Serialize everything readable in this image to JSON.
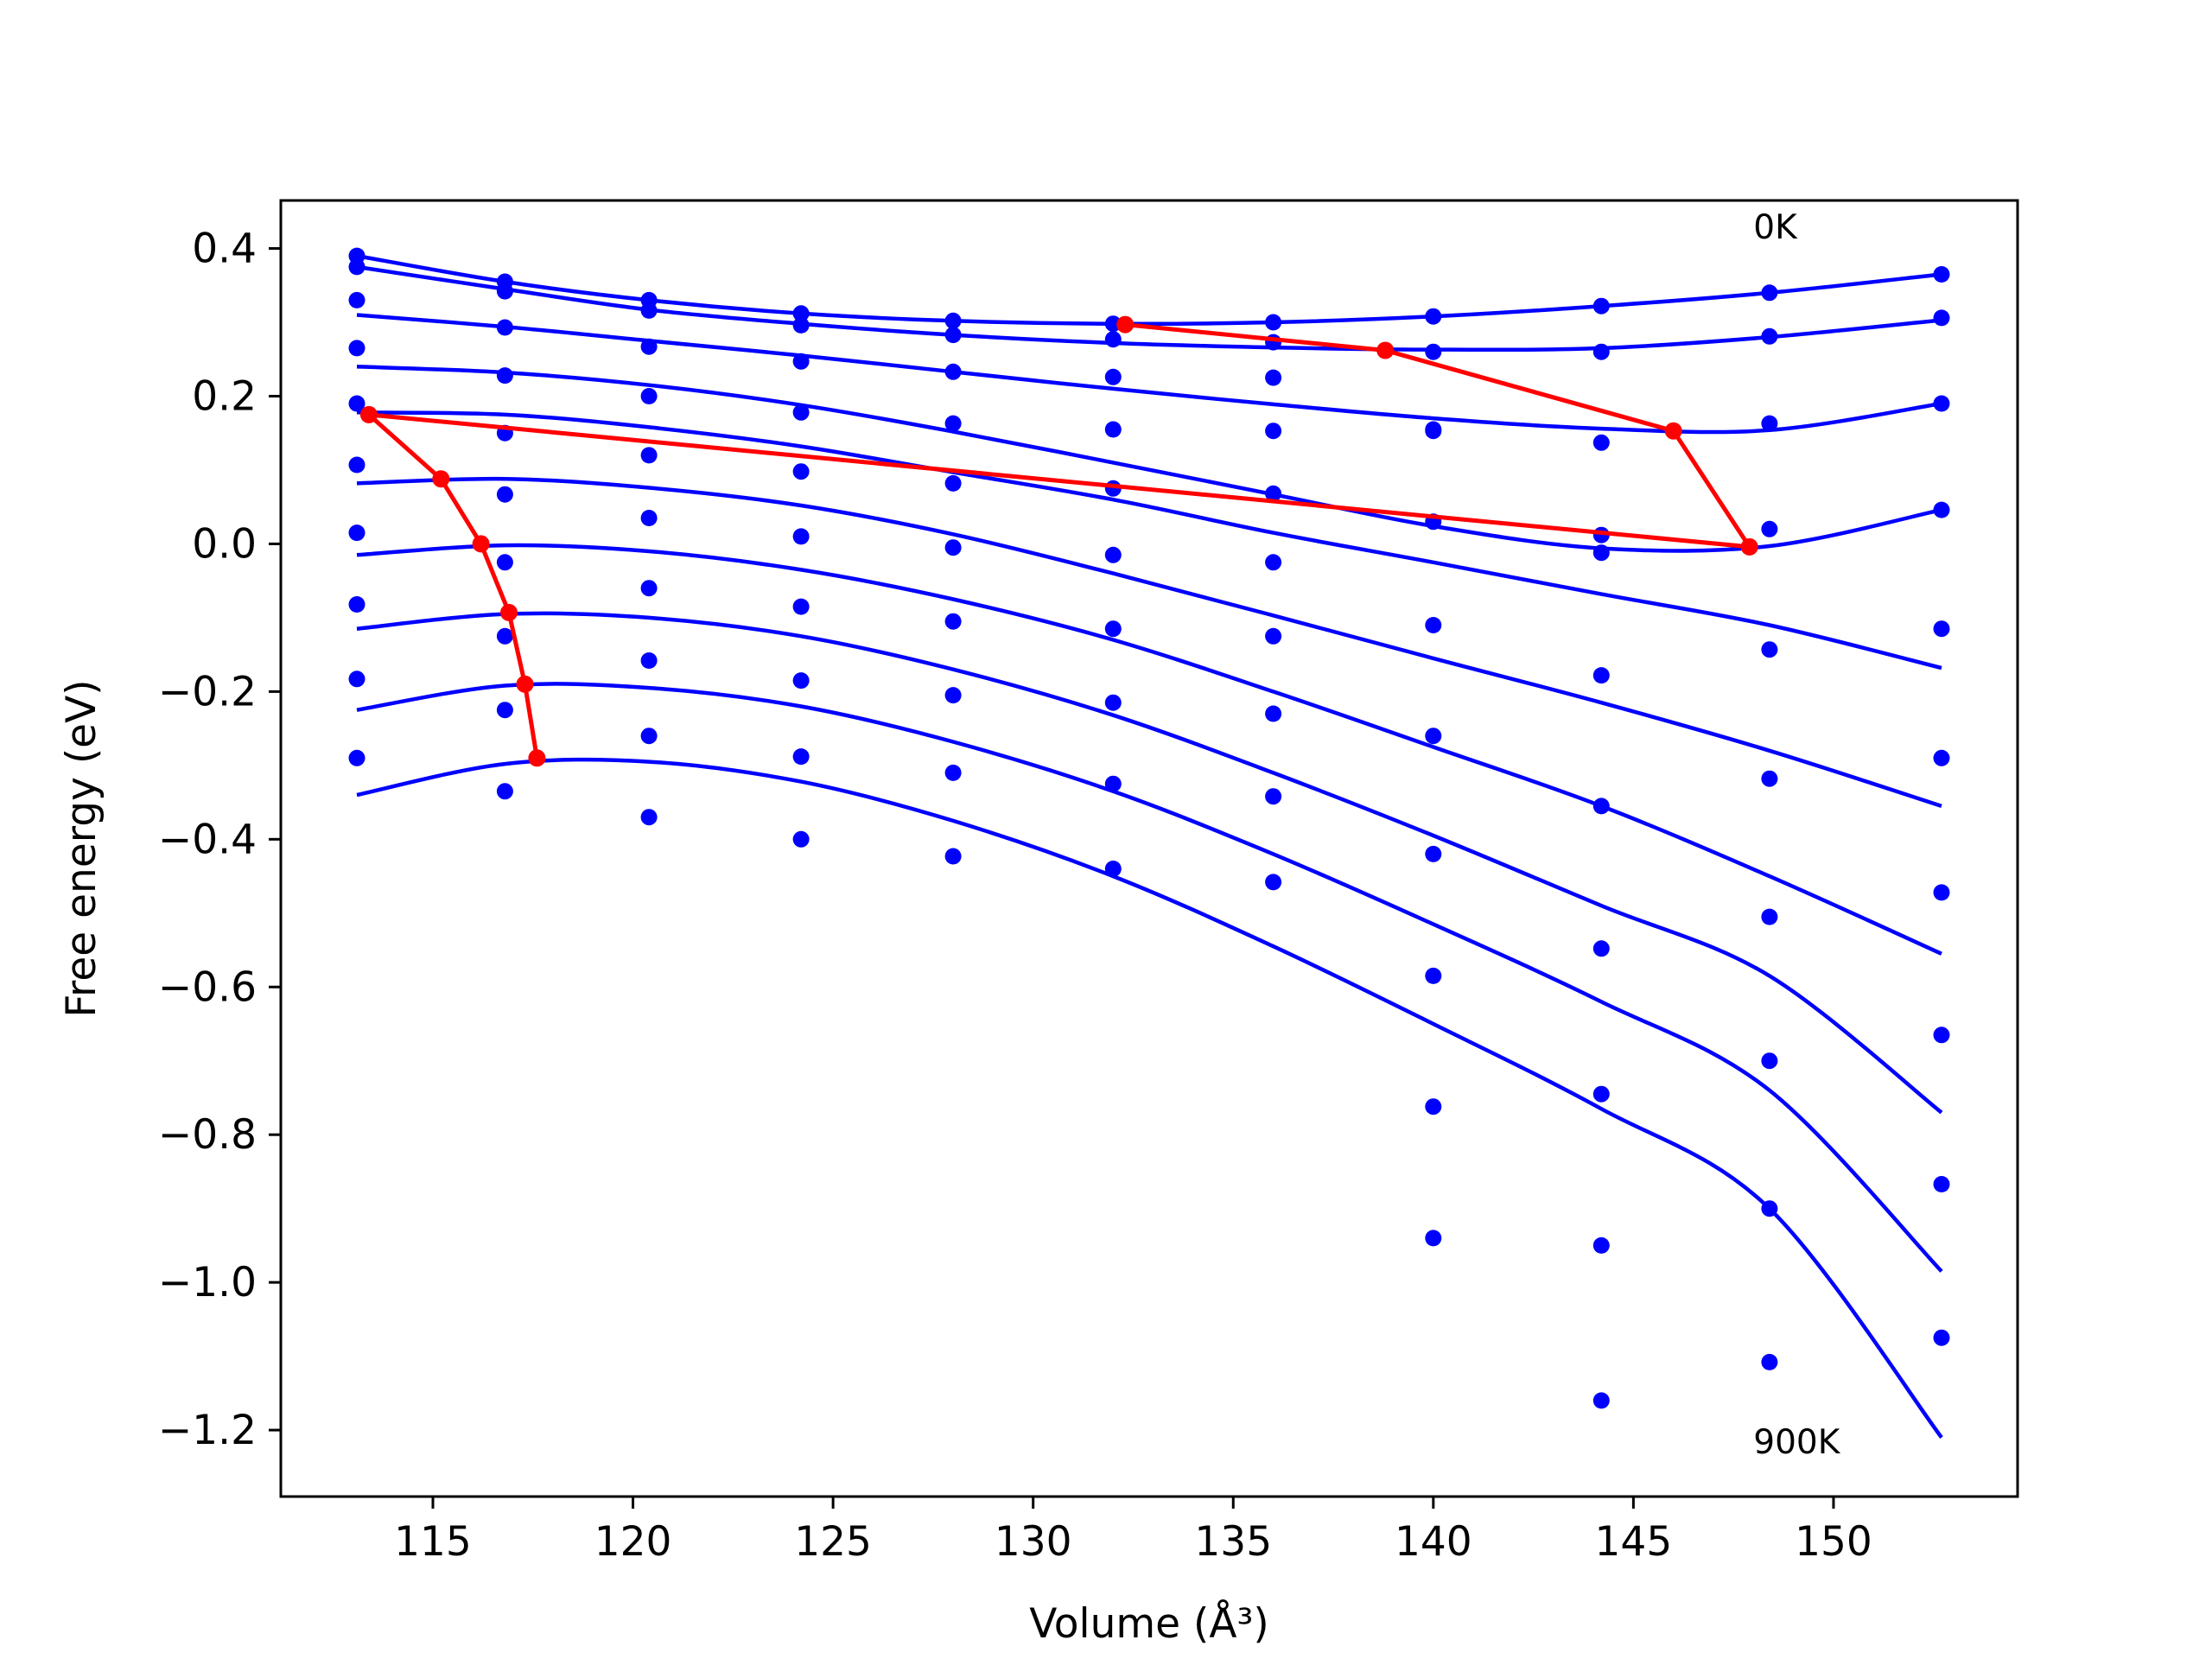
{
  "chart_data": {
    "type": "scatter",
    "xlabel": "Volume (Å³)",
    "ylabel": "Free energy (eV)",
    "xlim": [
      111.2,
      154.6
    ],
    "ylim": [
      -1.29,
      0.465
    ],
    "x_ticks": [
      115,
      120,
      125,
      130,
      135,
      140,
      145,
      150
    ],
    "y_ticks": [
      0.4,
      0.2,
      0.0,
      -0.2,
      -0.4,
      -0.6,
      -0.8,
      -1.0,
      -1.2
    ],
    "x_tick_labels": [
      "115",
      "120",
      "125",
      "130",
      "135",
      "140",
      "145",
      "150"
    ],
    "y_tick_labels": [
      "0.4",
      "0.2",
      "0.0",
      "−0.2",
      "−0.4",
      "−0.6",
      "−0.8",
      "−1.0",
      "−1.2"
    ],
    "grid": false,
    "colors": {
      "data": "#0000ff",
      "fit": "#0000ff",
      "minimum_path": "#ff0000",
      "axes": "#000000"
    },
    "annotations": [
      {
        "text": "0K",
        "x": 148.0,
        "y": 0.43
      },
      {
        "text": "900K",
        "x": 148.0,
        "y": -1.215
      }
    ],
    "volumes": [
      113.1,
      116.8,
      120.4,
      124.2,
      128.0,
      132.0,
      136.0,
      140.0,
      144.2,
      148.4,
      152.7
    ],
    "series": [
      {
        "points": [
          0.39,
          0.355,
          0.33,
          0.312,
          0.302,
          0.298,
          0.3,
          0.308,
          0.322,
          0.34,
          0.365
        ],
        "curve": [
          0.39,
          0.355,
          0.33,
          0.312,
          0.302,
          0.298,
          0.3,
          0.308,
          0.322,
          0.34,
          0.365
        ]
      },
      {
        "points": [
          0.375,
          0.342,
          0.316,
          0.296,
          0.283,
          0.277,
          0.273,
          0.26,
          0.26,
          0.281,
          0.306
        ],
        "curve": [
          0.375,
          0.345,
          0.317,
          0.298,
          0.283,
          0.272,
          0.266,
          0.263,
          0.265,
          0.28,
          0.303
        ]
      },
      {
        "points": [
          0.33,
          0.293,
          0.267,
          0.247,
          0.233,
          0.226,
          0.225,
          0.155,
          0.137,
          0.163,
          0.19
        ],
        "curve": [
          0.31,
          0.294,
          0.275,
          0.255,
          0.233,
          0.21,
          0.189,
          0.17,
          0.156,
          0.154,
          0.19
        ]
      },
      {
        "points": [
          0.265,
          0.228,
          0.2,
          0.178,
          0.163,
          0.155,
          0.153,
          0.153,
          0.012,
          0.02,
          0.046
        ],
        "curve": [
          0.24,
          0.232,
          0.215,
          0.188,
          0.152,
          0.11,
          0.067,
          0.024,
          -0.006,
          -0.003,
          0.046
        ]
      },
      {
        "points": [
          0.19,
          0.15,
          0.12,
          0.098,
          0.082,
          0.075,
          0.068,
          0.03,
          -0.012,
          -0.143,
          -0.115
        ],
        "curve": [
          0.178,
          0.175,
          0.158,
          0.132,
          0.097,
          0.06,
          0.015,
          -0.025,
          -0.068,
          -0.11,
          -0.168
        ]
      },
      {
        "points": [
          0.107,
          0.067,
          0.035,
          0.01,
          -0.005,
          -0.015,
          -0.025,
          -0.11,
          -0.178,
          -0.318,
          -0.29
        ],
        "curve": [
          0.082,
          0.088,
          0.076,
          0.052,
          0.013,
          -0.04,
          -0.097,
          -0.155,
          -0.215,
          -0.28,
          -0.355
        ]
      },
      {
        "points": [
          0.015,
          -0.025,
          -0.06,
          -0.085,
          -0.105,
          -0.115,
          -0.125,
          -0.26,
          -0.355,
          -0.505,
          -0.472
        ],
        "curve": [
          -0.015,
          -0.002,
          -0.01,
          -0.035,
          -0.075,
          -0.13,
          -0.2,
          -0.275,
          -0.355,
          -0.45,
          -0.555
        ]
      },
      {
        "points": [
          -0.082,
          -0.125,
          -0.158,
          -0.185,
          -0.205,
          -0.215,
          -0.23,
          -0.42,
          -0.548,
          -0.7,
          -0.665
        ],
        "curve": [
          -0.115,
          -0.095,
          -0.1,
          -0.125,
          -0.17,
          -0.232,
          -0.31,
          -0.395,
          -0.49,
          -0.585,
          -0.77
        ]
      },
      {
        "points": [
          -0.183,
          -0.225,
          -0.26,
          -0.288,
          -0.31,
          -0.325,
          -0.342,
          -0.585,
          -0.745,
          -0.9,
          -0.867
        ],
        "curve": [
          -0.225,
          -0.192,
          -0.195,
          -0.22,
          -0.268,
          -0.335,
          -0.42,
          -0.515,
          -0.62,
          -0.74,
          -0.985
        ]
      },
      {
        "points": [
          -0.29,
          -0.335,
          -0.37,
          -0.4,
          -0.423,
          -0.44,
          -0.458,
          -0.762,
          -0.95,
          -1.108,
          -1.075
        ],
        "curve": [
          -0.34,
          -0.298,
          -0.295,
          -0.322,
          -0.375,
          -0.45,
          -0.545,
          -0.65,
          -0.765,
          -0.9,
          -1.21
        ]
      },
      {
        "points": [
          null,
          null,
          null,
          null,
          null,
          null,
          null,
          -0.94,
          -1.16,
          null,
          null
        ],
        "curve": []
      }
    ],
    "minimum_path": {
      "x": [
        132.3,
        138.8,
        146.0,
        147.9,
        113.4,
        115.2,
        116.2,
        116.9,
        117.3,
        117.6
      ],
      "y": [
        0.297,
        0.262,
        0.153,
        -0.004,
        0.175,
        0.088,
        0.0,
        -0.093,
        -0.19,
        -0.29
      ]
    }
  }
}
